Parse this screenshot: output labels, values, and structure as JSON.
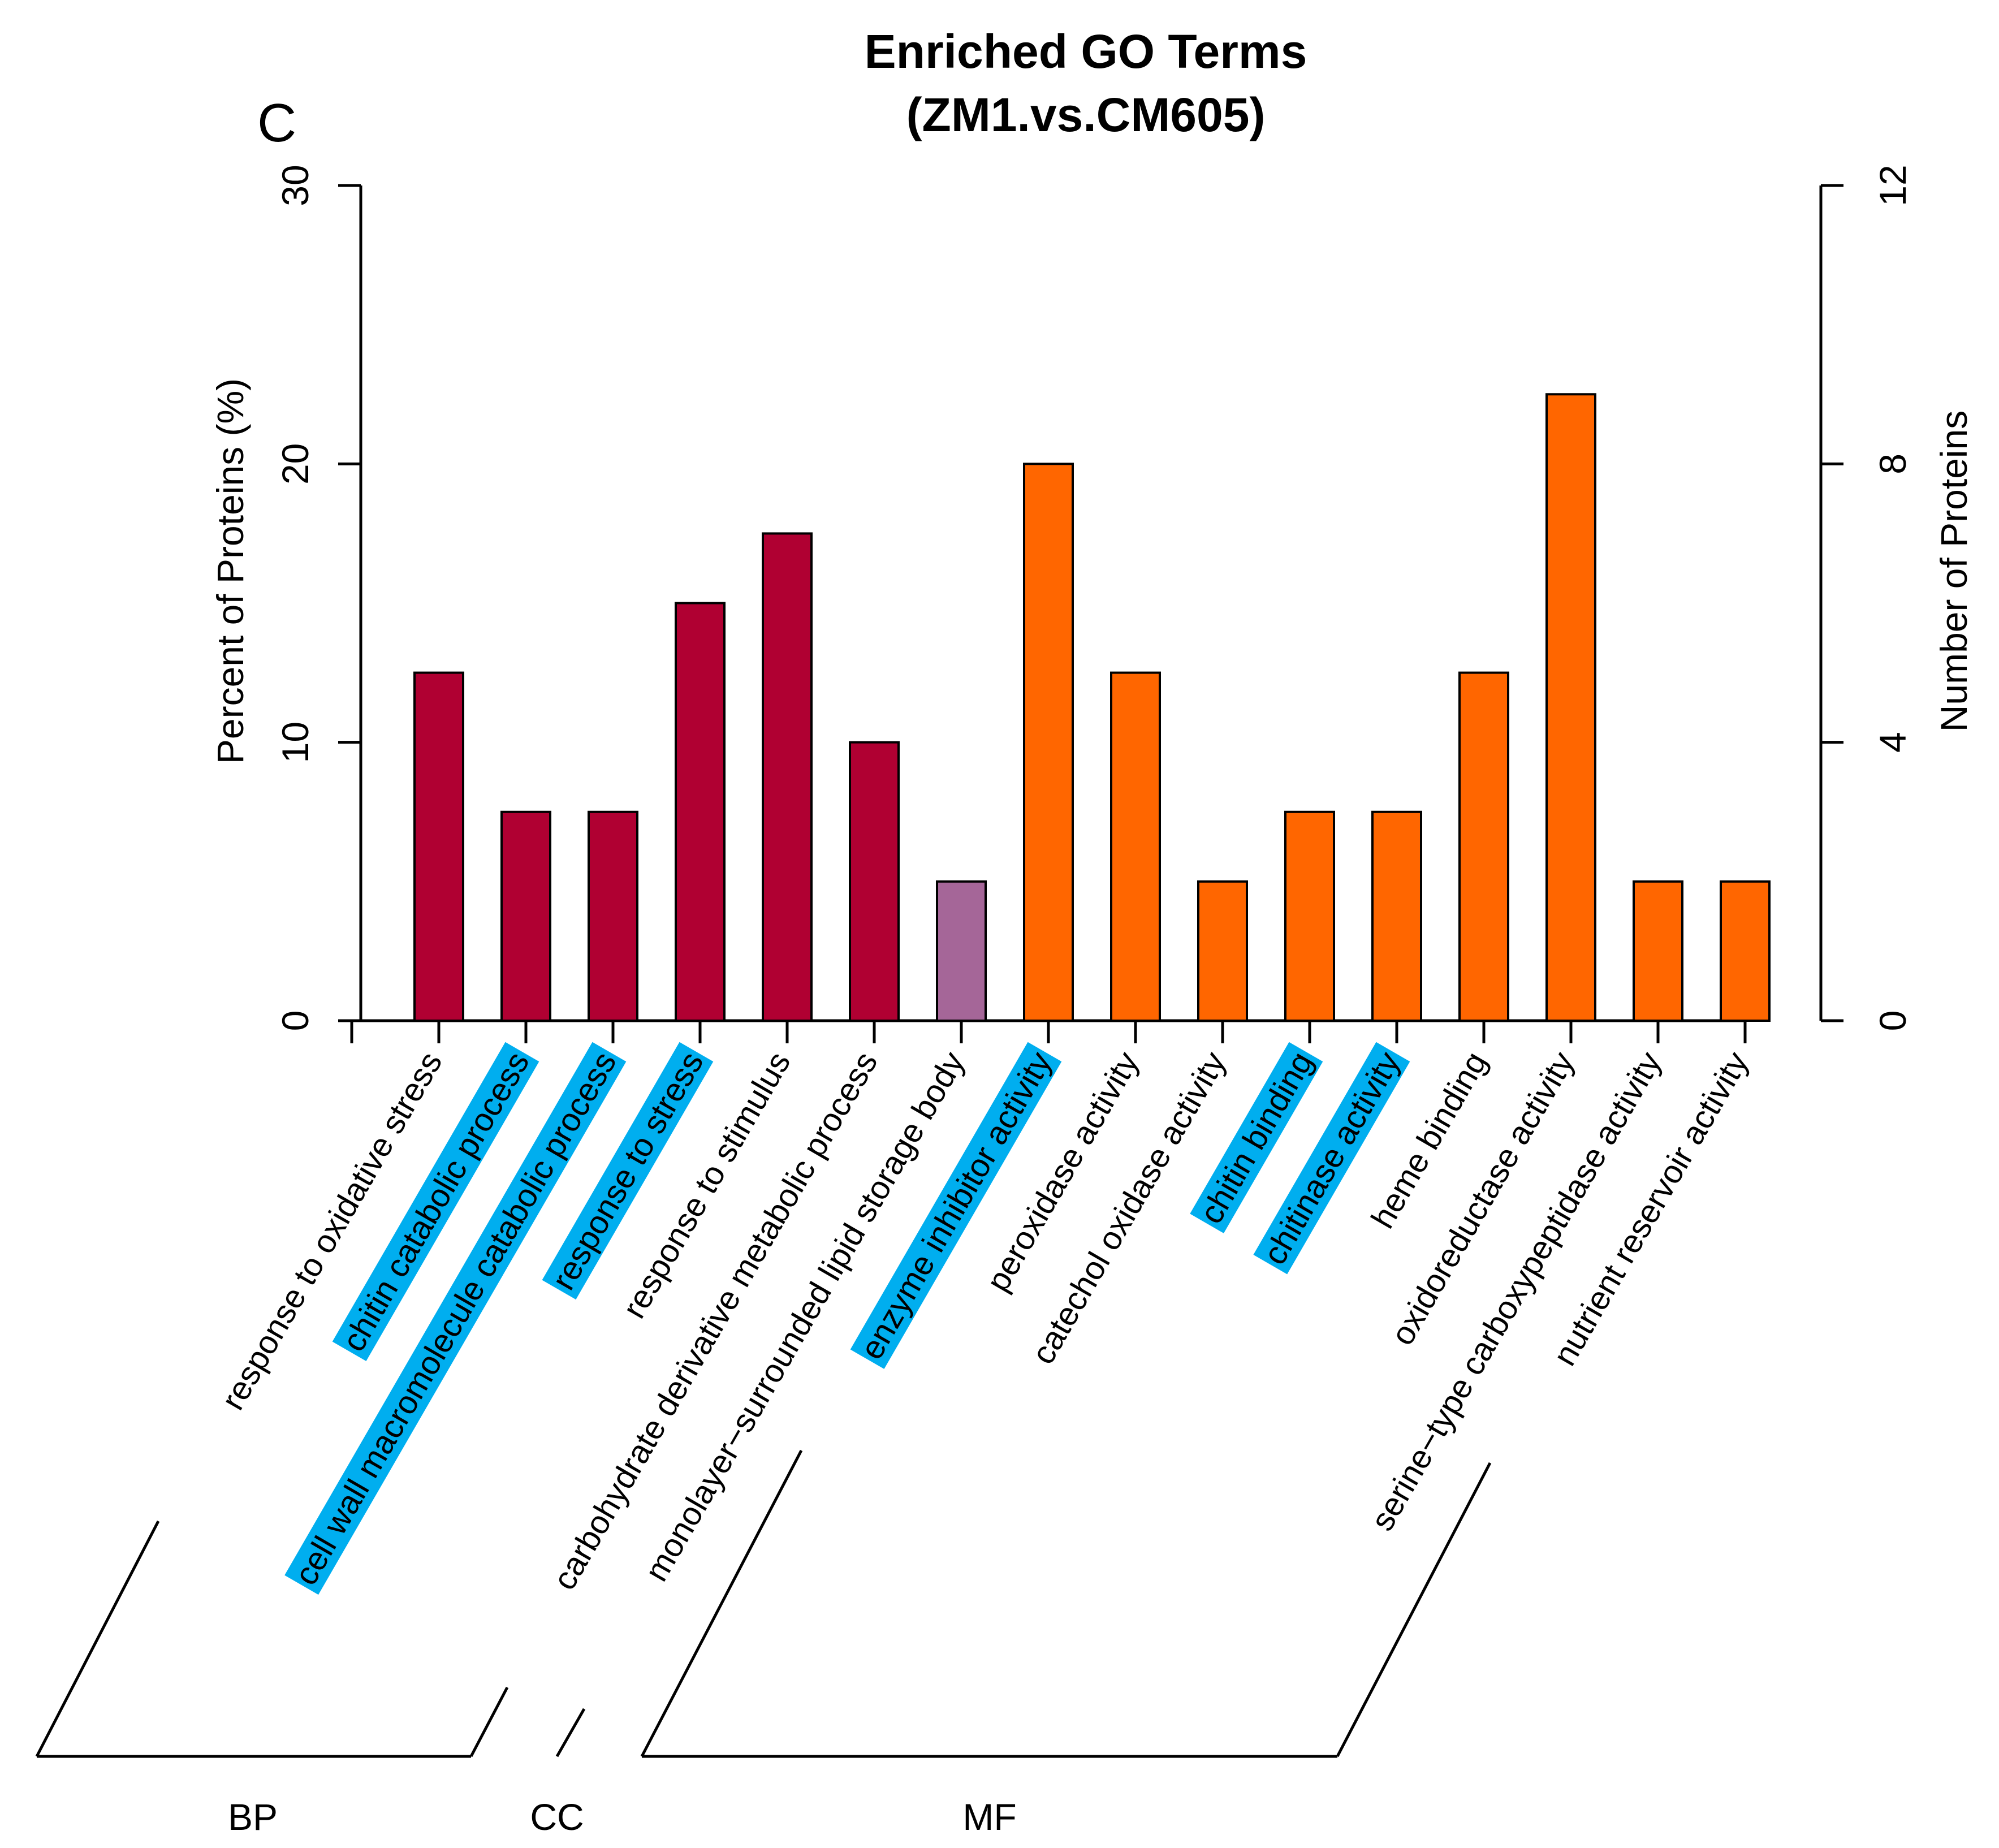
{
  "chart_data": {
    "type": "bar",
    "panel_label": "C",
    "title": "Enriched GO Terms",
    "subtitle": "(ZM1.vs.CM605)",
    "ylabel": "Percent of Proteins (%)",
    "y2label": "Number of Proteins",
    "ylim": [
      0,
      30
    ],
    "y2lim": [
      0,
      12
    ],
    "yticks": [
      0,
      10,
      20,
      30
    ],
    "y2ticks": [
      0,
      4,
      8,
      12
    ],
    "colors": {
      "BP": "#b00032",
      "CC": "#a56698",
      "MF": "#ff6600",
      "highlight": "#00aeef"
    },
    "categories": [
      {
        "label": "response to oxidative stress",
        "value": 12.5,
        "group": "BP",
        "highlight": false
      },
      {
        "label": "chitin catabolic process",
        "value": 7.5,
        "group": "BP",
        "highlight": true
      },
      {
        "label": "cell wall macromolecule catabolic process",
        "value": 7.5,
        "group": "BP",
        "highlight": true
      },
      {
        "label": "response to stress",
        "value": 15,
        "group": "BP",
        "highlight": true
      },
      {
        "label": "response to stimulus",
        "value": 17.5,
        "group": "BP",
        "highlight": false
      },
      {
        "label": "carbohydrate derivative metabolic process",
        "value": 10,
        "group": "BP",
        "highlight": false
      },
      {
        "label": "monolayer−surrounded lipid storage body",
        "value": 5,
        "group": "CC",
        "highlight": false
      },
      {
        "label": "enzyme inhibitor activity",
        "value": 20,
        "group": "MF",
        "highlight": true
      },
      {
        "label": "peroxidase activity",
        "value": 12.5,
        "group": "MF",
        "highlight": false
      },
      {
        "label": "catechol oxidase activity",
        "value": 5,
        "group": "MF",
        "highlight": false
      },
      {
        "label": "chitin binding",
        "value": 7.5,
        "group": "MF",
        "highlight": true
      },
      {
        "label": "chitinase activity",
        "value": 7.5,
        "group": "MF",
        "highlight": true
      },
      {
        "label": "heme binding",
        "value": 12.5,
        "group": "MF",
        "highlight": false
      },
      {
        "label": "oxidoreductase activity",
        "value": 22.5,
        "group": "MF",
        "highlight": false
      },
      {
        "label": "serine−type carboxypeptidase activity",
        "value": 5,
        "group": "MF",
        "highlight": false
      },
      {
        "label": "nutrient reservoir activity",
        "value": 5,
        "group": "MF",
        "highlight": false
      }
    ],
    "groups": [
      {
        "name": "BP",
        "first": 0,
        "last": 5
      },
      {
        "name": "CC",
        "first": 6,
        "last": 6
      },
      {
        "name": "MF",
        "first": 7,
        "last": 15
      }
    ]
  }
}
